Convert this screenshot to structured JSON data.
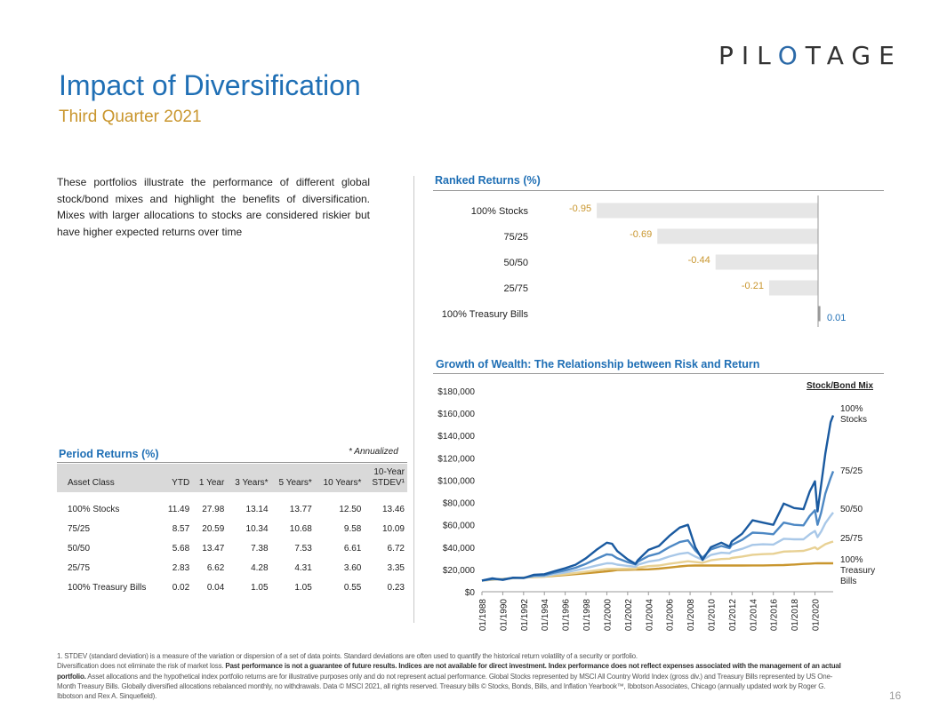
{
  "logo": {
    "text_left": "PIL",
    "text_mark": "O",
    "text_right": "TAGE"
  },
  "title": "Impact of Diversification",
  "subtitle": "Third Quarter 2021",
  "intro": "These portfolios illustrate the performance of different global stock/bond mixes and highlight the benefits of diversification. Mixes with larger allocations to stocks are considered riskier but have higher expected returns over time",
  "period_returns": {
    "heading": "Period Returns (%)",
    "annotation": "* Annualized",
    "columns": [
      "Asset Class",
      "YTD",
      "1 Year",
      "3 Years*",
      "5 Years*",
      "10 Years*",
      "10-Year STDEV¹"
    ],
    "col_last_line1": "10-Year",
    "col_last_line2": "STDEV¹",
    "rows": [
      [
        "100% Stocks",
        "11.49",
        "27.98",
        "13.14",
        "13.77",
        "12.50",
        "13.46"
      ],
      [
        "75/25",
        "8.57",
        "20.59",
        "10.34",
        "10.68",
        "9.58",
        "10.09"
      ],
      [
        "50/50",
        "5.68",
        "13.47",
        "7.38",
        "7.53",
        "6.61",
        "6.72"
      ],
      [
        "25/75",
        "2.83",
        "6.62",
        "4.28",
        "4.31",
        "3.60",
        "3.35"
      ],
      [
        "100% Treasury Bills",
        "0.02",
        "0.04",
        "1.05",
        "1.05",
        "0.55",
        "0.23"
      ]
    ]
  },
  "chart_data": [
    {
      "type": "bar",
      "orientation": "horizontal",
      "title": "Ranked Returns (%)",
      "categories": [
        "100% Stocks",
        "75/25",
        "50/50",
        "25/75",
        "100% Treasury Bills"
      ],
      "values": [
        -0.95,
        -0.69,
        -0.44,
        -0.21,
        0.01
      ],
      "labels": [
        "-0.95",
        "-0.69",
        "-0.44",
        "-0.21",
        "0.01"
      ],
      "bar_color": "#e6e6e6",
      "negative_label_color": "#c9962e",
      "positive_label_color": "#1f6fb5"
    },
    {
      "type": "line",
      "title": "Growth of Wealth: The Relationship between Risk and Return",
      "legend_title": "Stock/Bond Mix",
      "ylabel": "",
      "ylim": [
        0,
        180000
      ],
      "yticks": [
        0,
        20000,
        40000,
        60000,
        80000,
        100000,
        120000,
        140000,
        160000,
        180000
      ],
      "ytick_labels": [
        "$0",
        "$20,000",
        "$40,000",
        "$60,000",
        "$80,000",
        "$100,000",
        "$120,000",
        "$140,000",
        "$160,000",
        "$180,000"
      ],
      "xlim": [
        1988,
        2021.75
      ],
      "xtick_labels": [
        "01/1988",
        "01/1990",
        "01/1992",
        "01/1994",
        "01/1996",
        "01/1998",
        "01/2000",
        "01/2002",
        "01/2004",
        "01/2006",
        "01/2008",
        "01/2010",
        "01/2012",
        "01/2014",
        "01/2016",
        "01/2018",
        "01/2020"
      ],
      "x": [
        1988,
        1989,
        1990,
        1991,
        1992,
        1993,
        1994,
        1995,
        1996,
        1997,
        1998,
        1999,
        2000,
        2000.5,
        2001,
        2002,
        2002.75,
        2003,
        2004,
        2005,
        2006,
        2007,
        2007.8,
        2008.5,
        2009.2,
        2010,
        2011,
        2011.8,
        2012,
        2013,
        2014,
        2015,
        2016,
        2017,
        2018,
        2018.9,
        2019.5,
        2020,
        2020.25,
        2020.6,
        2021,
        2021.5,
        2021.75
      ],
      "series": [
        {
          "name": "100% Stocks",
          "label_line1": "100%",
          "label_line2": "Stocks",
          "color": "#1a5aa0",
          "values": [
            10000,
            12000,
            10600,
            12600,
            12300,
            15200,
            15700,
            18500,
            21100,
            24200,
            30000,
            37500,
            44000,
            43000,
            36500,
            29000,
            25000,
            28500,
            37500,
            41000,
            50000,
            57500,
            60000,
            40000,
            28500,
            40000,
            44000,
            40500,
            45000,
            52000,
            64000,
            62000,
            60000,
            79000,
            75000,
            74000,
            90000,
            99000,
            72000,
            96000,
            124000,
            152000,
            158000
          ]
        },
        {
          "name": "75/25",
          "label_line1": "75/25",
          "label_line2": "",
          "color": "#4d88c4",
          "values": [
            10000,
            11500,
            11000,
            12500,
            12400,
            14500,
            14800,
            17200,
            19200,
            21500,
            25000,
            29500,
            33500,
            33000,
            30000,
            26500,
            24500,
            27000,
            32000,
            34500,
            40000,
            44500,
            46000,
            37000,
            30500,
            38000,
            41000,
            39000,
            42000,
            46500,
            53000,
            52500,
            51500,
            62000,
            60000,
            59500,
            68000,
            73000,
            60000,
            71000,
            88000,
            102000,
            108000
          ]
        },
        {
          "name": "50/50",
          "label_line1": "50/50",
          "label_line2": "",
          "color": "#a9c8e8",
          "values": [
            10000,
            11100,
            11200,
            12300,
            12500,
            13800,
            14000,
            15900,
            17300,
            19100,
            21200,
            23400,
            25500,
            25400,
            24300,
            23200,
            22500,
            24300,
            27000,
            28400,
            31500,
            34000,
            35000,
            31500,
            28500,
            33000,
            35000,
            34500,
            36000,
            38500,
            42000,
            42500,
            42300,
            47500,
            47000,
            47000,
            51500,
            54500,
            49000,
            54000,
            61500,
            68000,
            71000
          ]
        },
        {
          "name": "25/75",
          "label_line1": "25/75",
          "label_line2": "",
          "color": "#e8d194",
          "values": [
            10000,
            10900,
            11400,
            12100,
            12600,
            13300,
            13600,
            14900,
            15700,
            16800,
            18000,
            19200,
            20400,
            20500,
            20500,
            20600,
            20700,
            21600,
            22900,
            23500,
            25000,
            26300,
            27300,
            26600,
            26000,
            28200,
            29300,
            29600,
            30300,
            31500,
            33100,
            33700,
            34000,
            36000,
            36300,
            36600,
            38200,
            39800,
            38000,
            40200,
            42600,
            44300,
            45000
          ]
        },
        {
          "name": "100% Treasury Bills",
          "label_line1": "100%",
          "label_line2": "Treasury",
          "label_line3": "Bills",
          "color": "#c9962e",
          "values": [
            10000,
            10700,
            11500,
            12300,
            12700,
            13100,
            13500,
            14300,
            15000,
            15800,
            16600,
            17400,
            18300,
            18800,
            19400,
            19700,
            19800,
            19900,
            20100,
            20700,
            21700,
            22700,
            23300,
            23500,
            23500,
            23500,
            23500,
            23500,
            23500,
            23500,
            23600,
            23600,
            23700,
            23900,
            24400,
            24900,
            25200,
            25400,
            25500,
            25500,
            25500,
            25500,
            25500
          ]
        }
      ]
    }
  ],
  "footnote": {
    "line1": "1. STDEV (standard deviation) is a measure of the variation or dispersion of a set of data points. Standard deviations are often used to quantify the historical return volatility of a security or portfolio.",
    "p2_a": "Diversification does not eliminate the risk of market loss. ",
    "p2_b": "Past performance is not a guarantee of future results. Indices are not available for direct investment. Index performance does not reflect expenses associated with the management of an actual portfolio.",
    "p2_c": " Asset allocations and the hypothetical index portfolio returns are for illustrative purposes only and do not represent actual performance. Global Stocks represented by MSCI All Country World Index (gross div.) and Treasury Bills represented by US One-Month Treasury Bills. Globally diversified allocations rebalanced monthly, no withdrawals. Data © MSCI 2021, all rights reserved. Treasury bills © Stocks, Bonds, Bills, and Inflation Yearbook™, Ibbotson Associates, Chicago (annually updated work by Roger G. Ibbotson and Rex A. Sinquefield)."
  },
  "page_number": "16"
}
